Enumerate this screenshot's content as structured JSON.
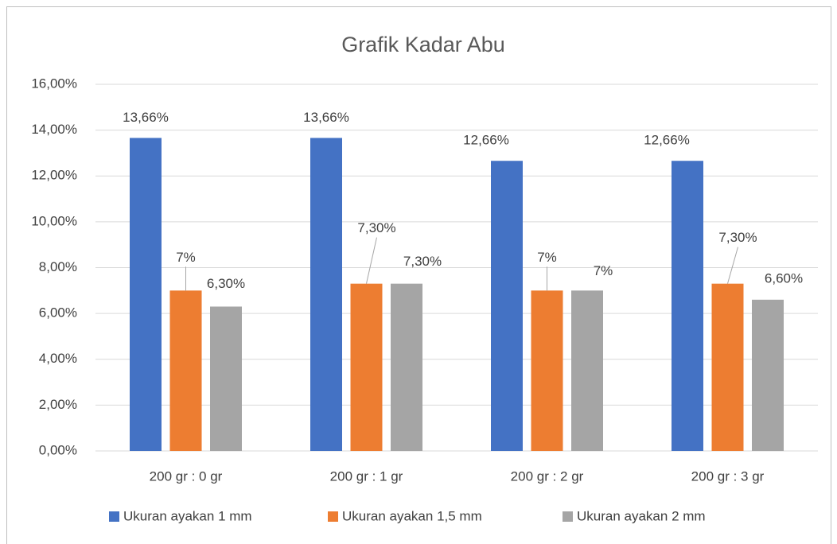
{
  "chart_data": {
    "type": "bar",
    "title": "Grafik Kadar Abu",
    "categories": [
      "200 gr : 0 gr",
      "200 gr : 1 gr",
      "200 gr : 2 gr",
      "200 gr : 3 gr"
    ],
    "series": [
      {
        "name": "Ukuran ayakan 1 mm",
        "color": "#4472c4",
        "values": [
          13.66,
          13.66,
          12.66,
          12.66
        ],
        "value_labels": [
          "13,66%",
          "13,66%",
          "12,66%",
          "12,66%"
        ]
      },
      {
        "name": "Ukuran ayakan 1,5 mm",
        "color": "#ed7d31",
        "values": [
          7,
          7.3,
          7,
          7.3
        ],
        "value_labels": [
          "7%",
          "7,30%",
          "7%",
          "7,30%"
        ]
      },
      {
        "name": "Ukuran ayakan 2 mm",
        "color": "#a5a5a5",
        "values": [
          6.3,
          7.3,
          7,
          6.6
        ],
        "value_labels": [
          "6,30%",
          "7,30%",
          "7%",
          "6,60%"
        ]
      }
    ],
    "ylim": [
      0,
      16
    ],
    "yticks": [
      {
        "value": 0,
        "label": "0,00%"
      },
      {
        "value": 2,
        "label": "2,00%"
      },
      {
        "value": 4,
        "label": "4,00%"
      },
      {
        "value": 6,
        "label": "6,00%"
      },
      {
        "value": 8,
        "label": "8,00%"
      },
      {
        "value": 10,
        "label": "10,00%"
      },
      {
        "value": 12,
        "label": "12,00%"
      },
      {
        "value": 14,
        "label": "14,00%"
      },
      {
        "value": 16,
        "label": "16,00%"
      }
    ],
    "grid": true,
    "legend": "bottom"
  }
}
